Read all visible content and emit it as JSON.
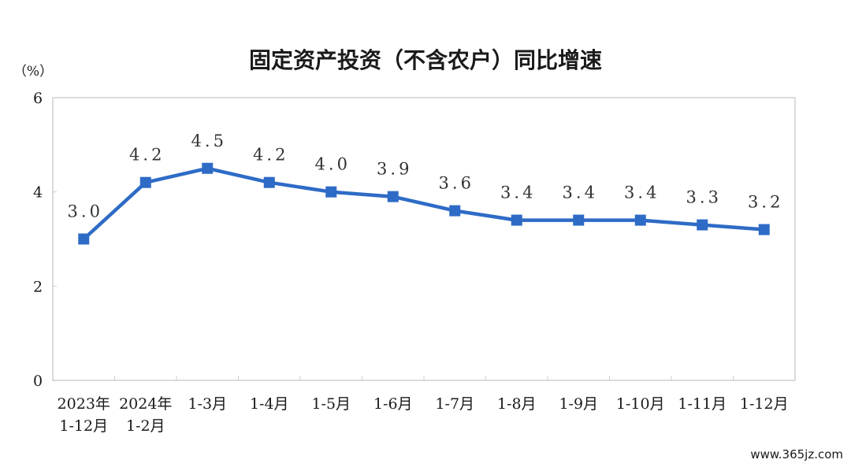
{
  "chart_data": {
    "type": "line",
    "title": "固定资产投资（不含农户）同比增速",
    "ylabel": "（%）",
    "xlabel": "",
    "ylim": [
      0,
      6
    ],
    "yticks": [
      "0",
      "2",
      "4",
      "6"
    ],
    "categories": [
      [
        "2023年",
        "1-12月"
      ],
      [
        "2024年",
        "1-2月"
      ],
      [
        "1-3月"
      ],
      [
        "1-4月"
      ],
      [
        "1-5月"
      ],
      [
        "1-6月"
      ],
      [
        "1-7月"
      ],
      [
        "1-8月"
      ],
      [
        "1-9月"
      ],
      [
        "1-10月"
      ],
      [
        "1-11月"
      ],
      [
        "1-12月"
      ]
    ],
    "series": [
      {
        "values": [
          3.0,
          4.2,
          4.5,
          4.2,
          4.0,
          3.9,
          3.6,
          3.4,
          3.4,
          3.4,
          3.3,
          3.2
        ],
        "labels": [
          "3.0",
          "4.2",
          "4.5",
          "4.2",
          "4.0",
          "3.9",
          "3.6",
          "3.4",
          "3.4",
          "3.4",
          "3.3",
          "3.2"
        ],
        "color": "#2e6bc6"
      }
    ],
    "grid": false,
    "legend": "none"
  },
  "watermark": "www.365jz.com"
}
